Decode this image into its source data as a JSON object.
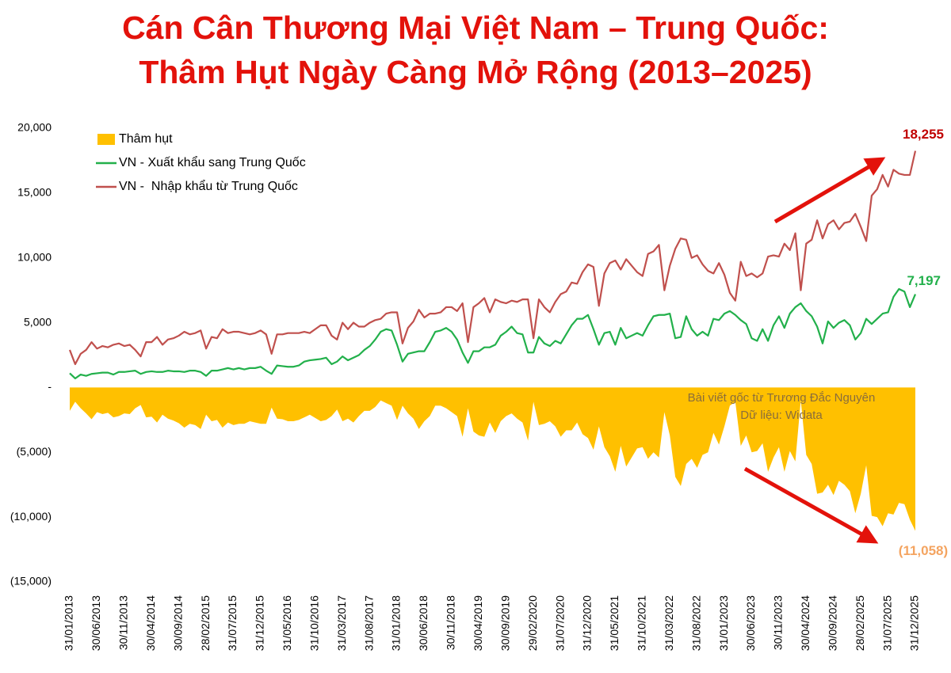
{
  "chart_data": {
    "type": "line",
    "title": "Cán Cân Thương Mại Việt Nam – Trung Quốc:",
    "subtitle": "Thâm Hụt Ngày Càng Mở Rộng (2013–2025)",
    "annotations": [
      "Bài viết gốc từ Trương Đắc Nguyên",
      "Dữ liệu: Widata"
    ],
    "legend": "top-left",
    "grid": false,
    "ylim": [
      -15000,
      20000
    ],
    "yticks": [
      {
        "value": 20000,
        "label": "20,000"
      },
      {
        "value": 15000,
        "label": "15,000"
      },
      {
        "value": 10000,
        "label": "10,000"
      },
      {
        "value": 5000,
        "label": "5,000"
      },
      {
        "value": 0,
        "label": "-"
      },
      {
        "value": -5000,
        "label": "(5,000)"
      },
      {
        "value": -10000,
        "label": "(10,000)"
      },
      {
        "value": -15000,
        "label": "(15,000)"
      }
    ],
    "categories": [
      "31/01/2013",
      null,
      null,
      null,
      null,
      "30/06/2013",
      null,
      null,
      null,
      null,
      "30/11/2013",
      null,
      null,
      null,
      null,
      "30/04/2014",
      null,
      null,
      null,
      null,
      "30/09/2014",
      null,
      null,
      null,
      null,
      "28/02/2015",
      null,
      null,
      null,
      null,
      "31/07/2015",
      null,
      null,
      null,
      null,
      "31/12/2015",
      null,
      null,
      null,
      null,
      "31/05/2016",
      null,
      null,
      null,
      null,
      "31/10/2016",
      null,
      null,
      null,
      null,
      "31/03/2017",
      null,
      null,
      null,
      null,
      "31/08/2017",
      null,
      null,
      null,
      null,
      "31/01/2018",
      null,
      null,
      null,
      null,
      "30/06/2018",
      null,
      null,
      null,
      null,
      "30/11/2018",
      null,
      null,
      null,
      null,
      "30/04/2019",
      null,
      null,
      null,
      null,
      "30/09/2019",
      null,
      null,
      null,
      null,
      "29/02/2020",
      null,
      null,
      null,
      null,
      "31/07/2020",
      null,
      null,
      null,
      null,
      "31/12/2020",
      null,
      null,
      null,
      null,
      "31/05/2021",
      null,
      null,
      null,
      null,
      "31/10/2021",
      null,
      null,
      null,
      null,
      "31/03/2022",
      null,
      null,
      null,
      null,
      "31/08/2022",
      null,
      null,
      null,
      null,
      "31/01/2023",
      null,
      null,
      null,
      null,
      "30/06/2023",
      null,
      null,
      null,
      null,
      "30/11/2023",
      null,
      null,
      null,
      null,
      "30/04/2024",
      null,
      null,
      null,
      null,
      "30/09/2024",
      null,
      null,
      null,
      null,
      "28/02/2025",
      null,
      null,
      null,
      null,
      "31/07/2025",
      null,
      null,
      null,
      null,
      "31/12/2025"
    ],
    "series": [
      {
        "name": "Thâm hụt",
        "kind": "area",
        "color": "#ffc000",
        "label_color": "#f4a460",
        "values": [
          -1800,
          -1100,
          -1600,
          -2000,
          -2450,
          -1900,
          -2050,
          -1950,
          -2300,
          -2200,
          -2000,
          -2050,
          -1600,
          -1350,
          -2300,
          -2250,
          -2700,
          -2100,
          -2400,
          -2550,
          -2750,
          -3100,
          -2800,
          -2900,
          -3200,
          -2100,
          -2600,
          -2500,
          -3100,
          -2700,
          -2900,
          -2800,
          -2800,
          -2600,
          -2700,
          -2800,
          -2800,
          -1550,
          -2400,
          -2450,
          -2600,
          -2600,
          -2500,
          -2300,
          -2100,
          -2350,
          -2600,
          -2500,
          -2200,
          -1700,
          -2600,
          -2400,
          -2700,
          -2200,
          -1800,
          -1800,
          -1500,
          -1000,
          -1200,
          -1400,
          -2500,
          -1400,
          -2000,
          -2400,
          -3200,
          -2600,
          -2200,
          -1400,
          -1400,
          -1600,
          -1900,
          -2200,
          -3800,
          -1600,
          -3400,
          -3700,
          -3800,
          -2700,
          -3500,
          -2600,
          -2200,
          -2000,
          -2400,
          -2700,
          -4100,
          -1100,
          -2900,
          -2800,
          -2600,
          -3000,
          -3800,
          -3300,
          -3300,
          -2700,
          -3600,
          -3900,
          -4800,
          -3000,
          -4600,
          -5300,
          -6500,
          -4500,
          -6100,
          -5400,
          -4700,
          -4600,
          -5500,
          -5000,
          -5400,
          -1900,
          -3700,
          -6900,
          -7600,
          -5900,
          -5500,
          -6200,
          -5200,
          -5000,
          -3500,
          -4400,
          -3000,
          -1400,
          -1100,
          -4500,
          -3700,
          -5000,
          -4900,
          -4300,
          -6500,
          -5400,
          -4600,
          -6500,
          -4900,
          -5700,
          -1000,
          -5200,
          -5900,
          -8200,
          -8100,
          -7500,
          -8300,
          -7200,
          -7500,
          -8000,
          -9700,
          -8200,
          -6000,
          -9900,
          -10000,
          -10700,
          -9700,
          -9800,
          -8900,
          -9000,
          -10200,
          -11058
        ],
        "value_labels": [
          null,
          null,
          null,
          null,
          null,
          null,
          null,
          null,
          null,
          null,
          null,
          null,
          null,
          null,
          null,
          null,
          null,
          null,
          null,
          null,
          null,
          null,
          null,
          null,
          null,
          null,
          null,
          null,
          null,
          null,
          null,
          null,
          null,
          null,
          null,
          null,
          null,
          null,
          null,
          null,
          null,
          null,
          null,
          null,
          null,
          null,
          null,
          null,
          null,
          null,
          null,
          null,
          null,
          null,
          null,
          null,
          null,
          null,
          null,
          null,
          null,
          null,
          null,
          null,
          null,
          null,
          null,
          null,
          null,
          null,
          null,
          null,
          null,
          null,
          null,
          null,
          null,
          null,
          null,
          null,
          null,
          null,
          null,
          null,
          null,
          null,
          null,
          null,
          null,
          null,
          null,
          null,
          null,
          null,
          null,
          null,
          null,
          null,
          null,
          null,
          null,
          null,
          null,
          null,
          null,
          null,
          null,
          null,
          null,
          null,
          null,
          null,
          null,
          null,
          null,
          null,
          null,
          null,
          null,
          null,
          null,
          null,
          null,
          null,
          null,
          null,
          null,
          null,
          null,
          null,
          null,
          null,
          null,
          null,
          null,
          null,
          null,
          null,
          null,
          null,
          null,
          null,
          null,
          null,
          null,
          null,
          null,
          null,
          null,
          null,
          null,
          null,
          null,
          null,
          null,
          "(11,058)"
        ]
      },
      {
        "name": "VN - Xuất khẩu sang Trung Quốc",
        "kind": "line",
        "color": "#22b04b",
        "label_color": "#22b04b",
        "values": [
          1100,
          700,
          1000,
          900,
          1050,
          1100,
          1150,
          1150,
          1000,
          1200,
          1200,
          1250,
          1300,
          1050,
          1200,
          1250,
          1200,
          1200,
          1300,
          1250,
          1250,
          1200,
          1300,
          1300,
          1200,
          900,
          1300,
          1300,
          1400,
          1500,
          1400,
          1500,
          1400,
          1500,
          1500,
          1600,
          1300,
          1050,
          1700,
          1650,
          1600,
          1600,
          1700,
          2000,
          2100,
          2150,
          2200,
          2300,
          1800,
          2000,
          2400,
          2100,
          2300,
          2500,
          2900,
          3200,
          3700,
          4300,
          4500,
          4400,
          3300,
          2000,
          2600,
          2700,
          2800,
          2800,
          3500,
          4300,
          4400,
          4600,
          4300,
          3700,
          2700,
          1900,
          2800,
          2800,
          3100,
          3100,
          3300,
          4000,
          4300,
          4700,
          4200,
          4100,
          2700,
          2700,
          3900,
          3400,
          3200,
          3600,
          3400,
          4100,
          4800,
          5300,
          5300,
          5600,
          4500,
          3300,
          4200,
          4300,
          3300,
          4600,
          3800,
          4000,
          4200,
          4000,
          4800,
          5500,
          5600,
          5600,
          5700,
          3800,
          3900,
          5500,
          4500,
          4000,
          4300,
          4000,
          5300,
          5200,
          5700,
          5900,
          5600,
          5200,
          4900,
          3800,
          3600,
          4500,
          3600,
          4800,
          5500,
          4600,
          5700,
          6200,
          6500,
          5900,
          5500,
          4700,
          3400,
          5100,
          4600,
          5000,
          5200,
          4800,
          3700,
          4200,
          5300,
          4900,
          5300,
          5700,
          5800,
          7000,
          7600,
          7400,
          6200,
          7197
        ],
        "value_labels": [
          null,
          null,
          null,
          null,
          null,
          null,
          null,
          null,
          null,
          null,
          null,
          null,
          null,
          null,
          null,
          null,
          null,
          null,
          null,
          null,
          null,
          null,
          null,
          null,
          null,
          null,
          null,
          null,
          null,
          null,
          null,
          null,
          null,
          null,
          null,
          null,
          null,
          null,
          null,
          null,
          null,
          null,
          null,
          null,
          null,
          null,
          null,
          null,
          null,
          null,
          null,
          null,
          null,
          null,
          null,
          null,
          null,
          null,
          null,
          null,
          null,
          null,
          null,
          null,
          null,
          null,
          null,
          null,
          null,
          null,
          null,
          null,
          null,
          null,
          null,
          null,
          null,
          null,
          null,
          null,
          null,
          null,
          null,
          null,
          null,
          null,
          null,
          null,
          null,
          null,
          null,
          null,
          null,
          null,
          null,
          null,
          null,
          null,
          null,
          null,
          null,
          null,
          null,
          null,
          null,
          null,
          null,
          null,
          null,
          null,
          null,
          null,
          null,
          null,
          null,
          null,
          null,
          null,
          null,
          null,
          null,
          null,
          null,
          null,
          null,
          null,
          null,
          null,
          null,
          null,
          null,
          null,
          null,
          null,
          null,
          null,
          null,
          null,
          null,
          null,
          null,
          null,
          null,
          null,
          null,
          null,
          null,
          null,
          null,
          null,
          null,
          null,
          null,
          null,
          null,
          "7,197"
        ]
      },
      {
        "name": "VN -  Nhập khẩu từ Trung Quốc",
        "kind": "line",
        "color": "#c0504d",
        "label_color": "#c00000",
        "values": [
          2900,
          1800,
          2600,
          2900,
          3500,
          3000,
          3200,
          3100,
          3300,
          3400,
          3200,
          3300,
          2900,
          2400,
          3500,
          3500,
          3900,
          3300,
          3700,
          3800,
          4000,
          4300,
          4100,
          4200,
          4400,
          3000,
          3900,
          3800,
          4500,
          4200,
          4300,
          4300,
          4200,
          4100,
          4200,
          4400,
          4100,
          2600,
          4100,
          4100,
          4200,
          4200,
          4200,
          4300,
          4200,
          4500,
          4800,
          4800,
          4000,
          3700,
          5000,
          4500,
          5000,
          4700,
          4700,
          5000,
          5200,
          5300,
          5700,
          5800,
          5800,
          3400,
          4600,
          5100,
          6000,
          5400,
          5700,
          5700,
          5800,
          6200,
          6200,
          5900,
          6500,
          3500,
          6200,
          6500,
          6900,
          5800,
          6800,
          6600,
          6500,
          6700,
          6600,
          6800,
          6800,
          3800,
          6800,
          6200,
          5800,
          6600,
          7200,
          7400,
          8100,
          8000,
          8900,
          9500,
          9300,
          6300,
          8800,
          9600,
          9800,
          9100,
          9900,
          9400,
          8900,
          8600,
          10300,
          10500,
          11000,
          7500,
          9400,
          10700,
          11500,
          11400,
          10000,
          10200,
          9500,
          9000,
          8800,
          9600,
          8700,
          7300,
          6700,
          9700,
          8600,
          8800,
          8500,
          8800,
          10100,
          10200,
          10100,
          11100,
          10600,
          11900,
          7500,
          11100,
          11400,
          12900,
          11500,
          12600,
          12900,
          12200,
          12700,
          12800,
          13400,
          12400,
          11300,
          14800,
          15300,
          16400,
          15500,
          16800,
          16500,
          16400,
          16400,
          18255
        ],
        "value_labels": [
          null,
          null,
          null,
          null,
          null,
          null,
          null,
          null,
          null,
          null,
          null,
          null,
          null,
          null,
          null,
          null,
          null,
          null,
          null,
          null,
          null,
          null,
          null,
          null,
          null,
          null,
          null,
          null,
          null,
          null,
          null,
          null,
          null,
          null,
          null,
          null,
          null,
          null,
          null,
          null,
          null,
          null,
          null,
          null,
          null,
          null,
          null,
          null,
          null,
          null,
          null,
          null,
          null,
          null,
          null,
          null,
          null,
          null,
          null,
          null,
          null,
          null,
          null,
          null,
          null,
          null,
          null,
          null,
          null,
          null,
          null,
          null,
          null,
          null,
          null,
          null,
          null,
          null,
          null,
          null,
          null,
          null,
          null,
          null,
          null,
          null,
          null,
          null,
          null,
          null,
          null,
          null,
          null,
          null,
          null,
          null,
          null,
          null,
          null,
          null,
          null,
          null,
          null,
          null,
          null,
          null,
          null,
          null,
          null,
          null,
          null,
          null,
          null,
          null,
          null,
          null,
          null,
          null,
          null,
          null,
          null,
          null,
          null,
          null,
          null,
          null,
          null,
          null,
          null,
          null,
          null,
          null,
          null,
          null,
          null,
          null,
          null,
          null,
          null,
          null,
          null,
          null,
          null,
          null,
          null,
          null,
          null,
          null,
          null,
          null,
          null,
          null,
          null,
          null,
          null,
          "18,255"
        ]
      }
    ]
  }
}
